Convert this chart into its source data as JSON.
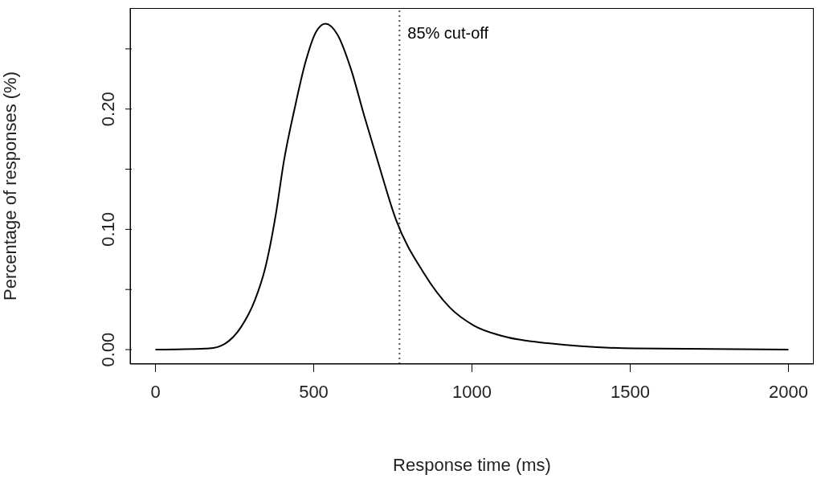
{
  "chart_data": {
    "type": "line",
    "xlabel": "Response time (ms)",
    "ylabel": "Percentage of responses (%)",
    "x": [
      0,
      170,
      220,
      271,
      314,
      347,
      380,
      406,
      441,
      474,
      507,
      537,
      575,
      618,
      659,
      702,
      760,
      847,
      930,
      1006,
      1100,
      1252,
      1513,
      2000
    ],
    "series": [
      {
        "color": "#000000",
        "values": [
          0,
          0.001,
          0.005,
          0.019,
          0.041,
          0.068,
          0.112,
          0.157,
          0.202,
          0.239,
          0.264,
          0.271,
          0.262,
          0.233,
          0.195,
          0.157,
          0.108,
          0.064,
          0.035,
          0.02,
          0.011,
          0.005,
          0.001,
          0
        ]
      }
    ],
    "xlim": [
      -80,
      2080
    ],
    "ylim": [
      -0.012,
      0.284
    ],
    "xticks": [
      0,
      500,
      1000,
      1500,
      2000
    ],
    "yticks": [
      {
        "value": 0,
        "label": "0.00"
      },
      {
        "value": 0.05,
        "label": null
      },
      {
        "value": 0.1,
        "label": "0.10"
      },
      {
        "value": 0.15,
        "label": null
      },
      {
        "value": 0.2,
        "label": "0.20"
      },
      {
        "value": 0.25,
        "label": null
      }
    ],
    "ref_lines": [
      {
        "axis": "x",
        "value": 771,
        "label": "85% cut-off",
        "color": "#555555",
        "line_style": "dotted"
      }
    ],
    "grid": false,
    "legend": false,
    "marker": "none",
    "line_style": "solid"
  }
}
